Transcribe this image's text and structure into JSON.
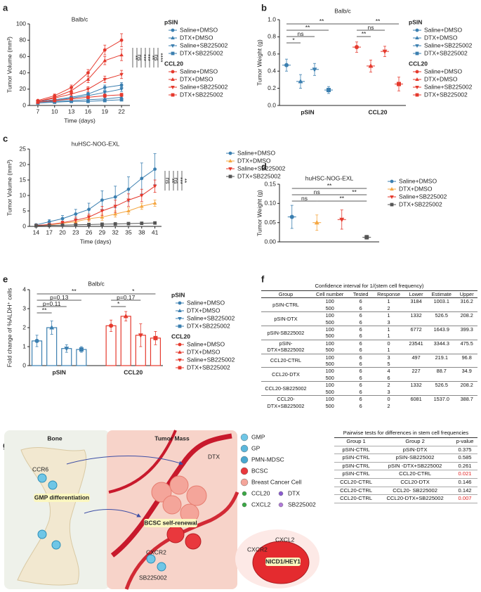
{
  "chart_data": [
    {
      "panel": "a",
      "type": "line",
      "title": "Balb/c",
      "xlabel": "Time (days)",
      "ylabel": "Tumor Volume (mm³)",
      "x": [
        7,
        10,
        13,
        16,
        19,
        22
      ],
      "xlim": [
        5.5,
        23.5
      ],
      "xticks": [
        7,
        10,
        13,
        16,
        19,
        22
      ],
      "ylim": [
        0,
        100
      ],
      "yticks": [
        0,
        20,
        40,
        60,
        80,
        100
      ],
      "groups": [
        {
          "name": "pSIN",
          "color": "#3b7fb0",
          "series": [
            {
              "name": "Saline+DMSO",
              "marker": "circle",
              "values": [
                5,
                7,
                10,
                14,
                22,
                25
              ],
              "errors": [
                1,
                1,
                1.5,
                2,
                3,
                3
              ]
            },
            {
              "name": "DTX+DMSO",
              "marker": "triangle",
              "values": [
                4,
                5,
                6,
                7,
                8,
                10
              ],
              "errors": [
                0.5,
                1,
                1,
                1,
                1.5,
                2
              ]
            },
            {
              "name": "Saline+SB225002",
              "marker": "triangle-down",
              "values": [
                4,
                6,
                9,
                12,
                16,
                20
              ],
              "errors": [
                0.5,
                1,
                1,
                1.5,
                2,
                3
              ]
            },
            {
              "name": "DTX+SB225002",
              "marker": "square",
              "values": [
                3,
                4,
                5,
                5,
                6,
                7
              ],
              "errors": [
                0.5,
                0.5,
                1,
                1,
                1,
                1
              ]
            }
          ]
        },
        {
          "name": "CCL20",
          "color": "#e5392d",
          "series": [
            {
              "name": "Saline+DMSO",
              "marker": "circle",
              "values": [
                6,
                12,
                22,
                40,
                68,
                80
              ],
              "errors": [
                1,
                2,
                3,
                4,
                6,
                8
              ]
            },
            {
              "name": "DTX+DMSO",
              "marker": "triangle",
              "values": [
                5,
                10,
                18,
                32,
                55,
                62
              ],
              "errors": [
                1,
                2,
                3,
                4,
                5,
                7
              ]
            },
            {
              "name": "Saline+SB225002",
              "marker": "triangle-down",
              "values": [
                5,
                9,
                14,
                20,
                32,
                38
              ],
              "errors": [
                1,
                1,
                2,
                3,
                4,
                5
              ]
            },
            {
              "name": "DTX+SB225002",
              "marker": "square",
              "values": [
                4,
                6,
                8,
                10,
                12,
                13
              ],
              "errors": [
                0.5,
                1,
                1,
                1.5,
                2,
                2
              ]
            }
          ]
        }
      ],
      "annotations": [
        "**",
        "ns",
        "***",
        "***",
        "**",
        "ns",
        "****"
      ]
    },
    {
      "panel": "b",
      "type": "dot",
      "title": "Balb/c",
      "ylabel": "Tumor Weight (g)",
      "ylim": [
        0,
        1
      ],
      "yticks": [
        {
          "value": 0,
          "label": "0.0"
        },
        0.2,
        0.4,
        0.6,
        0.8,
        {
          "value": 1,
          "label": "1.0"
        }
      ],
      "groups": [
        {
          "name": "pSIN",
          "color": "#3b7fb0",
          "series": [
            {
              "name": "Saline+DMSO",
              "marker": "circle",
              "values": [
                0.47
              ],
              "errors": [
                0.07
              ]
            },
            {
              "name": "DTX+DMSO",
              "marker": "triangle",
              "values": [
                0.28
              ],
              "errors": [
                0.08
              ]
            },
            {
              "name": "Saline+SB225002",
              "marker": "triangle-down",
              "values": [
                0.42
              ],
              "errors": [
                0.07
              ]
            },
            {
              "name": "DTX+SB225002",
              "marker": "square",
              "values": [
                0.18
              ],
              "errors": [
                0.04
              ]
            }
          ]
        },
        {
          "name": "CCL20",
          "color": "#e5392d",
          "series": [
            {
              "name": "Saline+DMSO",
              "marker": "circle",
              "values": [
                0.68
              ],
              "errors": [
                0.06
              ]
            },
            {
              "name": "DTX+DMSO",
              "marker": "triangle",
              "values": [
                0.46
              ],
              "errors": [
                0.07
              ]
            },
            {
              "name": "Saline+SB225002",
              "marker": "triangle-down",
              "values": [
                0.63
              ],
              "errors": [
                0.06
              ]
            },
            {
              "name": "DTX+SB225002",
              "marker": "square",
              "values": [
                0.25
              ],
              "errors": [
                0.08
              ]
            }
          ]
        }
      ],
      "brackets": [
        {
          "label": "**",
          "from": 0,
          "to": 4
        },
        {
          "label": "**",
          "from": 0,
          "to": 3
        },
        {
          "label": "ns",
          "from": 0,
          "to": 2
        },
        {
          "label": "*",
          "from": 0,
          "to": 1
        },
        {
          "label": "**",
          "from": 4,
          "to": 7
        },
        {
          "label": "ns",
          "from": 4,
          "to": 6
        },
        {
          "label": "**",
          "from": 4,
          "to": 5
        }
      ]
    },
    {
      "panel": "c",
      "type": "line",
      "title": "huHSC-NOG-EXL",
      "xlabel": "Time (days)",
      "ylabel": "Tumor Volume (mm³)",
      "x": [
        14,
        17,
        20,
        23,
        26,
        29,
        32,
        35,
        38,
        41
      ],
      "xlim": [
        12.5,
        42.5
      ],
      "xticks": [
        14,
        17,
        20,
        23,
        26,
        29,
        32,
        35,
        38,
        41
      ],
      "ylim": [
        0,
        25
      ],
      "yticks": [
        0,
        5,
        10,
        15,
        20,
        25
      ],
      "series": [
        {
          "name": "Saline+DMSO",
          "color": "#3b7fb0",
          "marker": "circle",
          "values": [
            0.5,
            1.5,
            2.5,
            4,
            5.5,
            8.5,
            9.5,
            12,
            15.5,
            18.5
          ],
          "errors": [
            0.3,
            0.7,
            1,
            1.5,
            2,
            3,
            3.5,
            4,
            5,
            5
          ]
        },
        {
          "name": "DTX+DMSO",
          "color": "#f5a742",
          "marker": "triangle",
          "values": [
            0.3,
            0.5,
            1,
            1.5,
            2.5,
            3,
            4,
            5,
            6.5,
            7.5
          ],
          "errors": [
            0.2,
            0.3,
            0.5,
            0.5,
            1,
            1,
            1,
            1,
            1,
            1
          ]
        },
        {
          "name": "Saline+SB225002",
          "color": "#e5392d",
          "marker": "triangle-down",
          "values": [
            0.3,
            0.6,
            1.2,
            2,
            3,
            5,
            6.5,
            8.5,
            10,
            13
          ],
          "errors": [
            0.2,
            0.3,
            0.5,
            1,
            1,
            1.5,
            2,
            2,
            2,
            2
          ]
        },
        {
          "name": "DTX+SB225002",
          "color": "#555555",
          "marker": "square",
          "values": [
            0.2,
            0.3,
            0.4,
            0.5,
            0.6,
            0.7,
            0.8,
            0.9,
            1,
            1.1
          ],
          "errors": [
            0.1,
            0.1,
            0.2,
            0.2,
            0.2,
            0.3,
            0.3,
            0.3,
            0.3,
            0.3
          ]
        }
      ],
      "annotations": [
        "ns",
        "**",
        "ns",
        "***",
        "**"
      ]
    },
    {
      "panel": "d",
      "type": "dot",
      "title": "huHSC-NOG-EXL",
      "ylabel": "Tumor Weight (g)",
      "ylim": [
        0,
        0.15
      ],
      "yticks": [
        {
          "value": 0,
          "label": "0.00"
        },
        0.05,
        {
          "value": 0.1,
          "label": "0.10"
        },
        0.15
      ],
      "series": [
        {
          "name": "Saline+DMSO",
          "color": "#3b7fb0",
          "marker": "circle",
          "values": [
            0.065
          ],
          "errors": [
            0.03
          ]
        },
        {
          "name": "DTX+DMSO",
          "color": "#f5a742",
          "marker": "triangle",
          "values": [
            0.05
          ],
          "errors": [
            0.02
          ]
        },
        {
          "name": "Saline+SB225002",
          "color": "#e5392d",
          "marker": "triangle-down",
          "values": [
            0.058
          ],
          "errors": [
            0.025
          ]
        },
        {
          "name": "DTX+SB225002",
          "color": "#555555",
          "marker": "square",
          "values": [
            0.012
          ],
          "errors": [
            0.005
          ]
        }
      ],
      "brackets": [
        {
          "label": "**",
          "from": 0,
          "to": 3
        },
        {
          "label": "ns",
          "from": 0,
          "to": 2
        },
        {
          "label": "**",
          "from": 2,
          "to": 3
        },
        {
          "label": "ns",
          "from": 0,
          "to": 1
        },
        {
          "label": "**",
          "from": 1,
          "to": 3
        }
      ]
    },
    {
      "panel": "e",
      "type": "bar",
      "title": "Balb/c",
      "ylabel": "Fold change of %ALDH⁺ cells",
      "ylim": [
        0,
        4
      ],
      "yticks": [
        0,
        1,
        2,
        3,
        4
      ],
      "groups": [
        {
          "name": "pSIN",
          "color": "#3b7fb0",
          "series": [
            {
              "name": "Saline+DMSO",
              "marker": "circle",
              "values": [
                1.3
              ],
              "errors": [
                0.3
              ]
            },
            {
              "name": "DTX+DMSO",
              "marker": "triangle",
              "values": [
                2.0
              ],
              "errors": [
                0.35
              ]
            },
            {
              "name": "Saline+SB225002",
              "marker": "triangle-down",
              "values": [
                0.9
              ],
              "errors": [
                0.2
              ]
            },
            {
              "name": "DTX+SB225002",
              "marker": "square",
              "values": [
                0.85
              ],
              "errors": [
                0.15
              ]
            }
          ]
        },
        {
          "name": "CCL20",
          "color": "#e5392d",
          "series": [
            {
              "name": "Saline+DMSO",
              "marker": "circle",
              "values": [
                2.1
              ],
              "errors": [
                0.3
              ]
            },
            {
              "name": "DTX+DMSO",
              "marker": "triangle",
              "values": [
                2.6
              ],
              "errors": [
                0.25
              ]
            },
            {
              "name": "Saline+SB225002",
              "marker": "triangle-down",
              "values": [
                1.6
              ],
              "errors": [
                0.6
              ]
            },
            {
              "name": "DTX+SB225002",
              "marker": "square",
              "values": [
                1.45
              ],
              "errors": [
                0.35
              ]
            }
          ]
        }
      ],
      "brackets": [
        {
          "label": "**",
          "from": 0,
          "to": 4
        },
        {
          "label": "p=0.13",
          "from": 0,
          "to": 3
        },
        {
          "label": "p=0.11",
          "from": 0,
          "to": 2
        },
        {
          "label": "**",
          "from": 0,
          "to": 1
        },
        {
          "label": "*",
          "from": 4,
          "to": 7
        },
        {
          "label": "p=0.17",
          "from": 4,
          "to": 6
        },
        {
          "label": "*",
          "from": 4,
          "to": 5
        }
      ]
    }
  ],
  "table_f": {
    "panel": "f",
    "title": "Confidence interval for 1/(stem cell frequency)",
    "columns": [
      "Group",
      "Cell number",
      "Tested",
      "Response",
      "Lower",
      "Estimate",
      "Upper"
    ],
    "rows": [
      {
        "group": "pSIN-CTRL",
        "lines": [
          [
            "100",
            "6",
            "1"
          ],
          [
            "500",
            "6",
            "2"
          ]
        ],
        "lower": "3184",
        "estimate": "1003.1",
        "upper": "316.2"
      },
      {
        "group": "pSIN-DTX",
        "lines": [
          [
            "100",
            "6",
            "1"
          ],
          [
            "500",
            "6",
            "3"
          ]
        ],
        "lower": "1332",
        "estimate": "526.5",
        "upper": "208.2"
      },
      {
        "group": "pSIN-SB225002",
        "lines": [
          [
            "100",
            "6",
            "1"
          ],
          [
            "500",
            "6",
            "1"
          ]
        ],
        "lower": "6772",
        "estimate": "1643.9",
        "upper": "399.3"
      },
      {
        "group": "pSIN-DTX+SB225002",
        "lines": [
          [
            "100",
            "6",
            "0"
          ],
          [
            "500",
            "6",
            "1"
          ]
        ],
        "lower": "23541",
        "estimate": "3344.3",
        "upper": "475.5"
      },
      {
        "group": "CCL20-CTRL",
        "lines": [
          [
            "100",
            "6",
            "3"
          ],
          [
            "500",
            "6",
            "5"
          ]
        ],
        "lower": "497",
        "estimate": "219.1",
        "upper": "96.8"
      },
      {
        "group": "CCL20-DTX",
        "lines": [
          [
            "100",
            "6",
            "4"
          ],
          [
            "500",
            "6",
            "6"
          ]
        ],
        "lower": "227",
        "estimate": "88.7",
        "upper": "34.9"
      },
      {
        "group": "CCL20-SB225002",
        "lines": [
          [
            "100",
            "6",
            "2"
          ],
          [
            "500",
            "6",
            "3"
          ]
        ],
        "lower": "1332",
        "estimate": "526.5",
        "upper": "208.2"
      },
      {
        "group": "CCL20-DTX+SB225002",
        "lines": [
          [
            "100",
            "6",
            "0"
          ],
          [
            "500",
            "6",
            "2"
          ]
        ],
        "lower": "6081",
        "estimate": "1537.0",
        "upper": "388.7"
      }
    ]
  },
  "table_g": {
    "title": "Pairwise tests for differences in stem cell frequencies",
    "columns": [
      "Group 1",
      "Group 2",
      "p-value"
    ],
    "rows": [
      {
        "group1": "pSIN-CTRL",
        "group2": "pSIN-DTX",
        "p": "0.375"
      },
      {
        "group1": "pSIN-CTRL",
        "group2": "pSIN-SB225002",
        "p": "0.585"
      },
      {
        "group1": "pSIN-CTRL",
        "group2": "pSIN -DTX+SB225002",
        "p": "0.261"
      },
      {
        "group1": "pSIN-CTRL",
        "group2": "CCL20-CTRL",
        "p": "0.021",
        "color": "#e02020"
      },
      {
        "group1": "CCL20-CTRL",
        "group2": "CCL20-DTX",
        "p": "0.146"
      },
      {
        "group1": "CCL20-CTRL",
        "group2": "CCL20- SB225002",
        "p": "0.142"
      },
      {
        "group1": "CCL20-CTRL",
        "group2": "CCL20-DTX+SB225002",
        "p": "0.007",
        "color": "#e02020"
      }
    ]
  },
  "diagram": {
    "panel": "g",
    "bone": "Bone",
    "tumor_mass": "Tumor Mass",
    "ccr6": "CCR6",
    "gmp_differentiation": "GMP differentiation",
    "bcsc_self_renewal": "BCSC self-renewal",
    "dtx": "DTX",
    "cxcr2": "CXCR2",
    "sb225002": "SB225002",
    "cxcl2": "CXCL2",
    "nicd1_hey1": "NICD1/HEY1",
    "legend": [
      "GMP",
      "GP",
      "PMN-MDSC",
      "BCSC",
      "Breast Cancer Cell",
      "CCL20",
      "DTX",
      "CXCL2",
      "SB225002"
    ]
  }
}
